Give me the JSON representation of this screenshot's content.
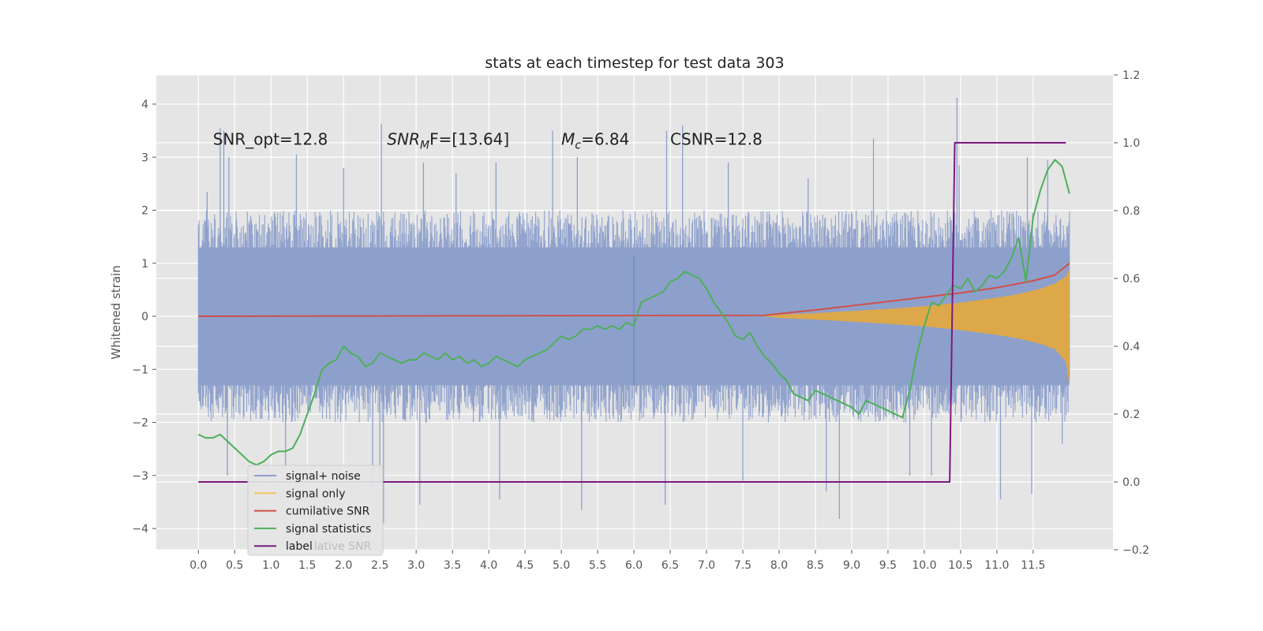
{
  "chart_data": {
    "type": "line",
    "title": "stats at each timestep for test data 303",
    "xlabel": "",
    "ylabel": "Whitened strain",
    "xlim": [
      -0.58,
      12.6
    ],
    "ylim": [
      -4.4,
      4.55
    ],
    "y2lim": [
      -0.2,
      1.2
    ],
    "grid": true,
    "legend_position": "lower-left",
    "x_ticks": [
      "0.0",
      "0.5",
      "1.0",
      "1.5",
      "2.0",
      "2.5",
      "3.0",
      "3.5",
      "4.0",
      "4.5",
      "5.0",
      "5.5",
      "6.0",
      "6.5",
      "7.0",
      "7.5",
      "8.0",
      "8.5",
      "9.0",
      "9.5",
      "10.0",
      "10.5",
      "11.0",
      "11.5"
    ],
    "y_ticks": [
      {
        "value": -4,
        "label": "−4"
      },
      {
        "value": -3,
        "label": "−3"
      },
      {
        "value": -2,
        "label": "−2"
      },
      {
        "value": -1,
        "label": "−1"
      },
      {
        "value": 0,
        "label": "0"
      },
      {
        "value": 1,
        "label": "1"
      },
      {
        "value": 2,
        "label": "2"
      },
      {
        "value": 3,
        "label": "3"
      },
      {
        "value": 4,
        "label": "4"
      }
    ],
    "y2_ticks": [
      {
        "value": -0.2,
        "label": "−0.2"
      },
      {
        "value": 0.0,
        "label": "0.0"
      },
      {
        "value": 0.2,
        "label": "0.2"
      },
      {
        "value": 0.4,
        "label": "0.4"
      },
      {
        "value": 0.6,
        "label": "0.6"
      },
      {
        "value": 0.8,
        "label": "0.8"
      },
      {
        "value": 1.0,
        "label": "1.0"
      },
      {
        "value": 1.2,
        "label": "1.2"
      }
    ],
    "annotations": [
      {
        "text": "SNR_opt=12.8",
        "x": 0.2,
        "y": 3.35,
        "math": false
      },
      {
        "text_pre": "SNR",
        "text_sub": "M",
        "text_post": "F=[13.64]",
        "x": 2.6,
        "y": 3.35,
        "math": true
      },
      {
        "text_pre": "M",
        "text_sub": "c",
        "text_post": "=6.84",
        "x": 5.0,
        "y": 3.35,
        "math": true
      },
      {
        "text": "CSNR=12.8",
        "x": 6.5,
        "y": 3.35,
        "math": false
      }
    ],
    "series": [
      {
        "name": "signal+ noise",
        "color": "#8da0cb",
        "axis": "left",
        "style": "noise",
        "envelope": {
          "x": [
            0,
            12
          ],
          "upper": [
            2.0,
            2.0
          ],
          "lower": [
            -2.0,
            -2.0
          ]
        },
        "peaks": [
          [
            0.3,
            3.55
          ],
          [
            0.35,
            3.5
          ],
          [
            0.42,
            3.0
          ],
          [
            2.52,
            3.62
          ],
          [
            4.88,
            3.5
          ],
          [
            5.22,
            3.0
          ],
          [
            6.45,
            3.5
          ],
          [
            6.67,
            3.6
          ],
          [
            9.3,
            3.35
          ],
          [
            10.45,
            4.12
          ],
          [
            10.48,
            2.85
          ],
          [
            11.42,
            3.0
          ],
          [
            0.12,
            2.35
          ],
          [
            1.35,
            3.05
          ],
          [
            2.0,
            2.8
          ],
          [
            3.1,
            2.9
          ],
          [
            3.55,
            2.7
          ],
          [
            4.1,
            2.9
          ],
          [
            7.3,
            2.9
          ],
          [
            8.4,
            2.6
          ],
          [
            11.7,
            2.95
          ],
          [
            2.4,
            -3.2
          ],
          [
            2.5,
            -3.1
          ],
          [
            2.55,
            -3.9
          ],
          [
            3.05,
            -3.55
          ],
          [
            4.15,
            -3.45
          ],
          [
            5.28,
            -3.65
          ],
          [
            6.43,
            -3.55
          ],
          [
            8.65,
            -3.3
          ],
          [
            8.83,
            -3.82
          ],
          [
            11.05,
            -3.45
          ],
          [
            11.48,
            -3.35
          ],
          [
            0.4,
            -3.0
          ],
          [
            1.2,
            -2.9
          ],
          [
            7.5,
            -3.1
          ],
          [
            9.8,
            -3.0
          ],
          [
            10.1,
            -3.0
          ],
          [
            11.9,
            -2.4
          ]
        ]
      },
      {
        "name": "signal only",
        "color": "#e5a83b",
        "axis": "left",
        "style": "fill",
        "x": [
          7.78,
          8.0,
          8.5,
          9.0,
          9.5,
          10.0,
          10.5,
          11.0,
          11.3,
          11.6,
          11.8,
          11.95,
          12.0
        ],
        "upper": [
          0.0,
          0.03,
          0.06,
          0.1,
          0.14,
          0.19,
          0.26,
          0.35,
          0.42,
          0.52,
          0.62,
          0.75,
          0.9
        ],
        "lower": [
          0.0,
          -0.03,
          -0.06,
          -0.1,
          -0.14,
          -0.19,
          -0.26,
          -0.35,
          -0.42,
          -0.52,
          -0.62,
          -0.85,
          -1.3
        ]
      },
      {
        "name": "cumilative SNR",
        "color": "#d1504a",
        "axis": "left",
        "style": "line",
        "x": [
          0.0,
          7.8,
          8.5,
          9.0,
          9.5,
          10.0,
          10.5,
          11.0,
          11.5,
          11.8,
          12.0
        ],
        "y": [
          0.0,
          0.02,
          0.12,
          0.2,
          0.28,
          0.36,
          0.44,
          0.54,
          0.67,
          0.78,
          1.0
        ]
      },
      {
        "name": "signal statistics",
        "color": "#4daf5a",
        "axis": "right",
        "style": "line",
        "x": [
          0.0,
          0.1,
          0.2,
          0.3,
          0.4,
          0.5,
          0.6,
          0.7,
          0.8,
          0.9,
          1.0,
          1.1,
          1.2,
          1.3,
          1.4,
          1.5,
          1.6,
          1.7,
          1.8,
          1.9,
          2.0,
          2.1,
          2.2,
          2.3,
          2.4,
          2.5,
          2.6,
          2.7,
          2.8,
          2.9,
          3.0,
          3.1,
          3.2,
          3.3,
          3.4,
          3.5,
          3.6,
          3.7,
          3.8,
          3.9,
          4.0,
          4.1,
          4.2,
          4.3,
          4.4,
          4.5,
          4.6,
          4.7,
          4.8,
          4.9,
          5.0,
          5.1,
          5.2,
          5.3,
          5.4,
          5.5,
          5.6,
          5.7,
          5.8,
          5.9,
          6.0,
          6.1,
          6.2,
          6.3,
          6.4,
          6.5,
          6.6,
          6.7,
          6.8,
          6.9,
          7.0,
          7.1,
          7.2,
          7.3,
          7.4,
          7.5,
          7.6,
          7.7,
          7.8,
          7.9,
          8.0,
          8.1,
          8.2,
          8.3,
          8.4,
          8.5,
          8.6,
          8.7,
          8.8,
          8.9,
          9.0,
          9.1,
          9.2,
          9.3,
          9.4,
          9.5,
          9.6,
          9.7,
          9.8,
          9.9,
          10.0,
          10.1,
          10.2,
          10.3,
          10.4,
          10.5,
          10.6,
          10.7,
          10.8,
          10.9,
          11.0,
          11.1,
          11.2,
          11.3,
          11.4,
          11.5,
          11.6,
          11.7,
          11.8,
          11.9,
          12.0
        ],
        "y": [
          0.14,
          0.13,
          0.13,
          0.14,
          0.12,
          0.1,
          0.08,
          0.06,
          0.05,
          0.06,
          0.08,
          0.09,
          0.09,
          0.1,
          0.14,
          0.2,
          0.26,
          0.33,
          0.35,
          0.36,
          0.4,
          0.38,
          0.37,
          0.34,
          0.35,
          0.38,
          0.37,
          0.36,
          0.35,
          0.36,
          0.36,
          0.38,
          0.37,
          0.36,
          0.38,
          0.36,
          0.37,
          0.35,
          0.36,
          0.34,
          0.35,
          0.37,
          0.36,
          0.35,
          0.34,
          0.36,
          0.37,
          0.38,
          0.39,
          0.41,
          0.43,
          0.42,
          0.43,
          0.45,
          0.45,
          0.46,
          0.45,
          0.46,
          0.45,
          0.47,
          0.46,
          0.53,
          0.54,
          0.55,
          0.56,
          0.59,
          0.6,
          0.62,
          0.61,
          0.6,
          0.57,
          0.53,
          0.5,
          0.47,
          0.43,
          0.42,
          0.44,
          0.4,
          0.37,
          0.35,
          0.32,
          0.3,
          0.26,
          0.25,
          0.24,
          0.27,
          0.26,
          0.25,
          0.24,
          0.23,
          0.22,
          0.2,
          0.24,
          0.23,
          0.22,
          0.21,
          0.2,
          0.19,
          0.27,
          0.38,
          0.46,
          0.53,
          0.52,
          0.55,
          0.58,
          0.57,
          0.6,
          0.56,
          0.58,
          0.61,
          0.6,
          0.62,
          0.66,
          0.72,
          0.59,
          0.78,
          0.86,
          0.92,
          0.95,
          0.93,
          0.85
        ]
      },
      {
        "name": "label",
        "color": "#7b1a80",
        "axis": "right",
        "style": "step",
        "x": [
          0.0,
          10.35,
          10.42,
          11.95
        ],
        "y": [
          0.0,
          0.0,
          1.0,
          1.0
        ]
      }
    ]
  },
  "legend": {
    "items": [
      {
        "name": "signal+ noise",
        "color": "#8da0cb"
      },
      {
        "name": "signal only",
        "color": "#f4c55c"
      },
      {
        "name": "cumilative SNR",
        "color": "#d1504a"
      },
      {
        "name": "signal statistics",
        "color": "#4daf5a"
      },
      {
        "name": "label",
        "color": "#7b1a80"
      }
    ],
    "ghost_text": "lative SNR"
  }
}
